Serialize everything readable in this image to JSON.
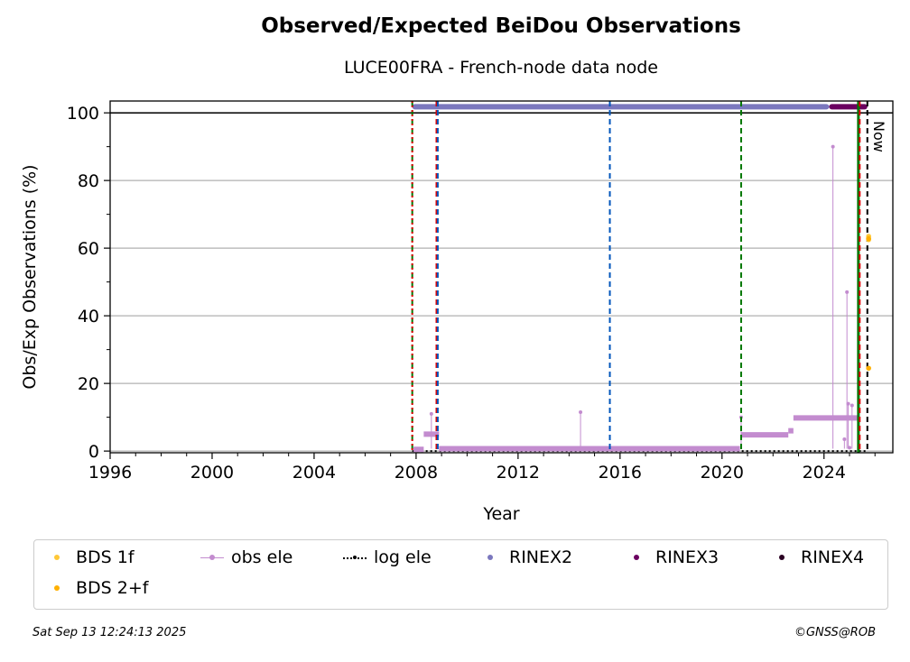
{
  "chart_data": {
    "type": "scatter",
    "title": "Observed/Expected BeiDou Observations",
    "subtitle": "LUCE00FRA - French-node data node",
    "xlabel": "Year",
    "ylabel": "Obs/Exp Observations (%)",
    "xlim": [
      1996,
      2026.7
    ],
    "ylim": [
      -0.5,
      103.5
    ],
    "xticks": [
      1996,
      2000,
      2004,
      2008,
      2012,
      2016,
      2020,
      2024
    ],
    "yticks": [
      0,
      20,
      40,
      60,
      80,
      100
    ],
    "grid": "horizontal",
    "now_label": "Now",
    "vlines": [
      {
        "x": 2007.85,
        "color": "#007700",
        "style": "dashed"
      },
      {
        "x": 2007.85,
        "color": "#dd0000",
        "style": "dotted"
      },
      {
        "x": 2008.8,
        "color": "#dd0000",
        "style": "dashed"
      },
      {
        "x": 2008.85,
        "color": "#0055bb",
        "style": "dashed"
      },
      {
        "x": 2015.6,
        "color": "#0055bb",
        "style": "dashed"
      },
      {
        "x": 2020.75,
        "color": "#007700",
        "style": "dashed"
      },
      {
        "x": 2025.35,
        "color": "#007700",
        "style": "solid"
      },
      {
        "x": 2025.4,
        "color": "#dd0000",
        "style": "dashed"
      },
      {
        "x": 2025.7,
        "color": "#000000",
        "style": "dashed"
      }
    ],
    "series": [
      {
        "name": "BDS 1f",
        "color": "#ffc837",
        "points": [
          [
            2025.75,
            63.5
          ],
          [
            2025.75,
            62.5
          ]
        ]
      },
      {
        "name": "BDS 2+f",
        "color": "#ffb000",
        "points": [
          [
            2025.75,
            62.8
          ],
          [
            2025.75,
            24.5
          ]
        ]
      },
      {
        "name": "obs ele",
        "color": "#c38ccf",
        "segments": [
          {
            "x0": 2007.9,
            "x1": 2008.3,
            "y": 0.5
          },
          {
            "x0": 2008.3,
            "x1": 2008.9,
            "y": 5
          },
          {
            "x0": 2008.9,
            "x1": 2020.7,
            "y": 0.7
          },
          {
            "x0": 2020.75,
            "x1": 2022.6,
            "y": 4.8
          },
          {
            "x0": 2022.6,
            "x1": 2022.8,
            "y": 6
          },
          {
            "x0": 2022.8,
            "x1": 2025.3,
            "y": 9.8
          }
        ],
        "spikes": [
          [
            2008.6,
            11
          ],
          [
            2014.45,
            11.5
          ],
          [
            2020.75,
            10
          ],
          [
            2024.35,
            90
          ],
          [
            2024.9,
            47
          ],
          [
            2024.95,
            14
          ],
          [
            2025.1,
            13.5
          ],
          [
            2024.8,
            3.5
          ],
          [
            2025.0,
            1
          ]
        ]
      },
      {
        "name": "log ele",
        "color": "#000000",
        "segments": [
          {
            "x0": 2007.85,
            "x1": 2025.7,
            "y": 0
          }
        ]
      },
      {
        "name": "RINEX2",
        "color": "#7b78be",
        "segments": [
          {
            "x0": 2007.85,
            "x1": 2024.2,
            "y": 101.8
          }
        ]
      },
      {
        "name": "RINEX3",
        "color": "#6b0060",
        "segments": [
          {
            "x0": 2024.2,
            "x1": 2025.7,
            "y": 101.8
          }
        ]
      },
      {
        "name": "RINEX4",
        "color": "#2a0022",
        "points": []
      }
    ]
  },
  "legend": {
    "items": [
      {
        "label": "BDS 1f"
      },
      {
        "label": "obs ele"
      },
      {
        "label": "log ele"
      },
      {
        "label": "RINEX2"
      },
      {
        "label": "RINEX3"
      },
      {
        "label": "RINEX4"
      },
      {
        "label": "BDS 2+f"
      }
    ]
  },
  "footer": {
    "timestamp": "Sat Sep 13 12:24:13 2025",
    "credit": "©GNSS@ROB"
  }
}
